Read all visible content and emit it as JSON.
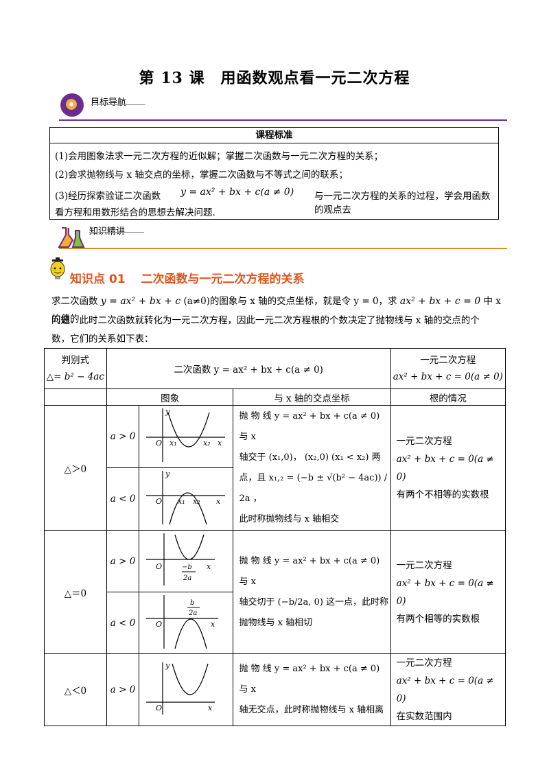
{
  "title": "第 13 课　用函数观点看一元二次方程",
  "nav1": "目标导航",
  "nav2": "知识精讲",
  "standards": {
    "header": "课程标准",
    "items": [
      "(1)会用图象法求一元二次方程的近似解；掌握二次函数与一元二次方程的关系；",
      "(2)会求抛物线与 x 轴交点的坐标，掌握二次函数与不等式之间的联系；",
      "(3)经历探索验证二次函数",
      "与一元二次方程的关系的过程，学会用函数的观点去",
      "看方程和用数形结合的思想去解决问题."
    ],
    "formula": "y = ax² + bx + c(a ≠ 0)"
  },
  "knowledge": {
    "title": "知识点 01　 二次函数与一元二次方程的关系",
    "intro_1a": "求二次函数",
    "intro_1b": "y = ax² + bx + c",
    "intro_1c": "(a≠0)的图象与 x 轴的交点坐标，就是令 y = 0，求",
    "intro_1d": "ax² + bx + c = 0",
    "intro_1e": "中 x 的值的",
    "intro_2": "问题．此时二次函数就转化为一元二次方程，因此一元二次方程根的个数决定了抛物线与 x 轴的交点的个",
    "intro_3": "数，它们的关系如下表："
  },
  "table": {
    "h_disc_1": "判别式",
    "h_disc_2": "△= b² − 4ac",
    "h_func": "二次函数 y = ax² + bx + c(a ≠ 0)",
    "h_eq_1": "一元二次方程",
    "h_eq_2": "ax² + bx + c = 0(a ≠ 0)",
    "h_image": "图象",
    "h_intersect": "与 x 轴的交点坐标",
    "h_roots": "根的情况",
    "rows": [
      {
        "delta": "△＞0",
        "a_pos": "a > 0",
        "a_neg": "a < 0",
        "desc": [
          "抛 物 线 y = ax² + bx + c(a ≠ 0) 与 x",
          "轴交于 (x₁,0)， (x₂,0) (x₁ < x₂) 两",
          "点，且 x₁,₂ = (−b ± √(b² − 4ac)) / 2a ，",
          "此时称抛物线与 x 轴相交"
        ],
        "roots": [
          "一元二次方程",
          "ax² + bx + c = 0(a ≠ 0)",
          "有两个不相等的实数根"
        ]
      },
      {
        "delta": "△＝0",
        "a_pos": "a > 0",
        "a_neg": "a < 0",
        "desc": [
          "抛 物 线 y = ax² + bx + c(a ≠ 0) 与 x",
          "轴交切于 (−b/2a, 0) 这一点，此时称",
          "抛物线与 x 轴相切"
        ],
        "roots": [
          "一元二次方程",
          "ax² + bx + c = 0(a ≠ 0)",
          "有两个相等的实数根"
        ]
      },
      {
        "delta": "△＜0",
        "a_pos": "a > 0",
        "desc": [
          "抛 物 线 y = ax² + bx + c(a ≠ 0) 与 x",
          "轴无交点，此时称抛物线与 x 轴相离"
        ],
        "roots": [
          "一元二次方程",
          "ax² + bx + c = 0(a ≠ 0)",
          "在实数范围内"
        ]
      }
    ]
  },
  "graph_labels": {
    "o": "O",
    "x": "x",
    "y": "y",
    "x1": "x₁",
    "x2": "x₂",
    "neg_b": "−b",
    "two_a": "2a",
    "b": "b"
  }
}
